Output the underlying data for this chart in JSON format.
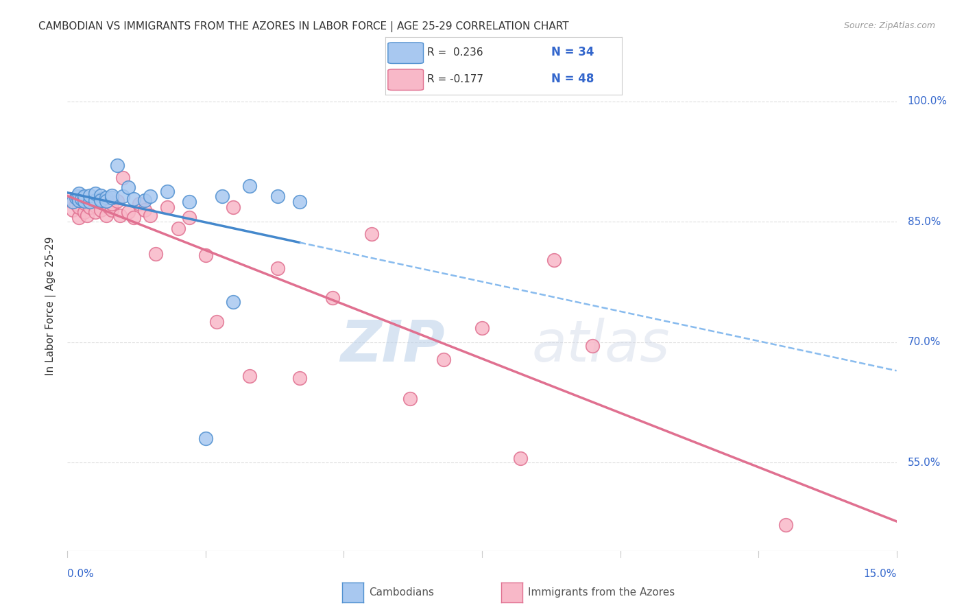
{
  "title": "CAMBODIAN VS IMMIGRANTS FROM THE AZORES IN LABOR FORCE | AGE 25-29 CORRELATION CHART",
  "source": "Source: ZipAtlas.com",
  "ylabel": "In Labor Force | Age 25-29",
  "xmin": 0.0,
  "xmax": 0.15,
  "ymin": 0.44,
  "ymax": 1.05,
  "watermark_zip": "ZIP",
  "watermark_atlas": "atlas",
  "legend_r_cambodian": "R =  0.236",
  "legend_n_cambodian": "N = 34",
  "legend_r_azores": "R = -0.177",
  "legend_n_azores": "N = 48",
  "color_cambodian_fill": "#A8C8F0",
  "color_cambodian_edge": "#5090D0",
  "color_azores_fill": "#F8B8C8",
  "color_azores_edge": "#E07090",
  "color_cambodian_line": "#4488CC",
  "color_azores_line": "#E07090",
  "color_cambodian_line_dash": "#88BBEE",
  "ytick_vals": [
    0.55,
    0.7,
    0.85,
    1.0
  ],
  "ytick_labels": [
    "55.0%",
    "70.0%",
    "85.0%",
    "100.0%"
  ],
  "scatter_cambodian_x": [
    0.001,
    0.0015,
    0.0018,
    0.002,
    0.002,
    0.0025,
    0.003,
    0.003,
    0.003,
    0.004,
    0.004,
    0.005,
    0.005,
    0.006,
    0.006,
    0.006,
    0.007,
    0.007,
    0.008,
    0.008,
    0.009,
    0.01,
    0.011,
    0.012,
    0.014,
    0.015,
    0.018,
    0.022,
    0.025,
    0.028,
    0.03,
    0.033,
    0.038,
    0.042
  ],
  "scatter_cambodian_y": [
    0.875,
    0.88,
    0.882,
    0.877,
    0.885,
    0.878,
    0.88,
    0.876,
    0.882,
    0.875,
    0.883,
    0.877,
    0.885,
    0.878,
    0.883,
    0.877,
    0.88,
    0.876,
    0.88,
    0.883,
    0.92,
    0.882,
    0.893,
    0.878,
    0.877,
    0.882,
    0.888,
    0.875,
    0.58,
    0.882,
    0.75,
    0.895,
    0.882,
    0.875
  ],
  "scatter_azores_x": [
    0.0005,
    0.001,
    0.0015,
    0.002,
    0.002,
    0.0025,
    0.003,
    0.003,
    0.0035,
    0.004,
    0.004,
    0.005,
    0.005,
    0.0055,
    0.006,
    0.006,
    0.007,
    0.007,
    0.0075,
    0.008,
    0.008,
    0.009,
    0.0095,
    0.01,
    0.011,
    0.012,
    0.013,
    0.014,
    0.015,
    0.016,
    0.018,
    0.02,
    0.022,
    0.025,
    0.027,
    0.03,
    0.033,
    0.038,
    0.042,
    0.048,
    0.055,
    0.062,
    0.068,
    0.075,
    0.082,
    0.088,
    0.095,
    0.13
  ],
  "scatter_azores_y": [
    0.878,
    0.865,
    0.872,
    0.855,
    0.868,
    0.876,
    0.862,
    0.873,
    0.858,
    0.868,
    0.875,
    0.87,
    0.862,
    0.875,
    0.878,
    0.865,
    0.872,
    0.858,
    0.868,
    0.865,
    0.872,
    0.876,
    0.858,
    0.905,
    0.862,
    0.855,
    0.872,
    0.865,
    0.858,
    0.81,
    0.868,
    0.842,
    0.855,
    0.808,
    0.725,
    0.868,
    0.658,
    0.792,
    0.655,
    0.755,
    0.835,
    0.63,
    0.678,
    0.718,
    0.555,
    0.802,
    0.695,
    0.472
  ],
  "background_color": "#FFFFFF",
  "grid_color": "#DDDDDD",
  "axis_color": "#CCCCCC",
  "label_color": "#3366CC",
  "text_color": "#333333",
  "source_color": "#999999"
}
